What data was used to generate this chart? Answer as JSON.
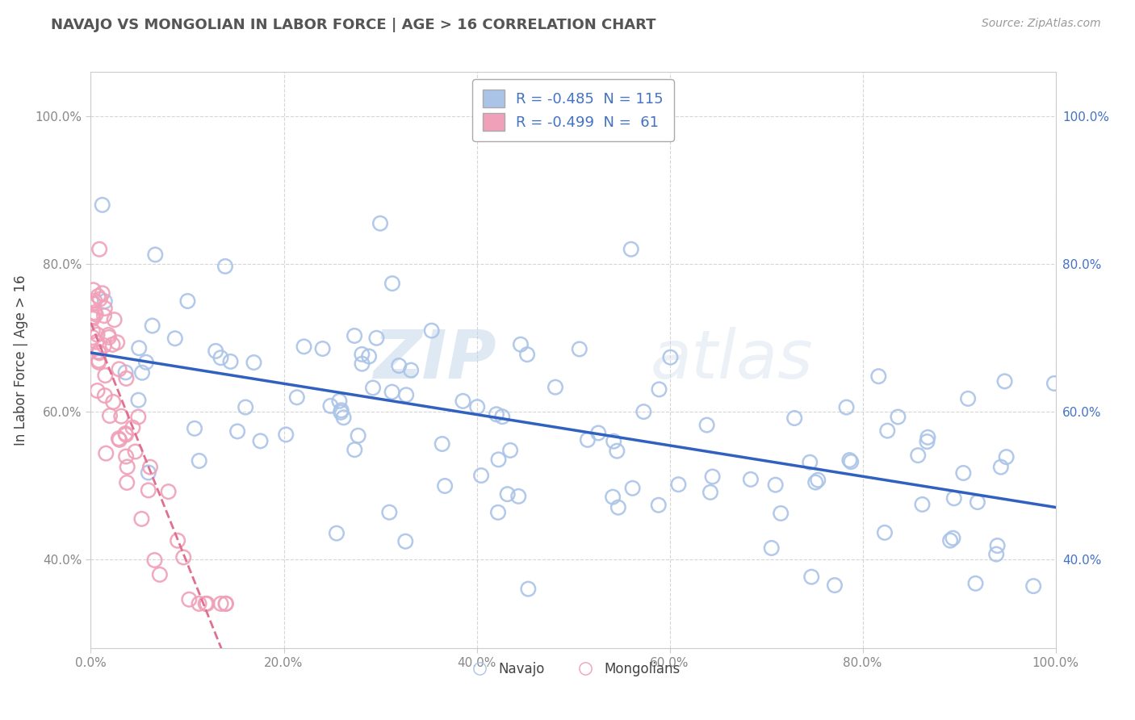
{
  "title": "NAVAJO VS MONGOLIAN IN LABOR FORCE | AGE > 16 CORRELATION CHART",
  "source_text": "Source: ZipAtlas.com",
  "ylabel_text": "In Labor Force | Age > 16",
  "xlim": [
    0.0,
    1.0
  ],
  "ylim": [
    0.28,
    1.06
  ],
  "xticks": [
    0.0,
    0.2,
    0.4,
    0.6,
    0.8,
    1.0
  ],
  "yticks": [
    0.4,
    0.6,
    0.8,
    1.0
  ],
  "xtick_labels": [
    "0.0%",
    "20.0%",
    "40.0%",
    "60.0%",
    "80.0%",
    "100.0%"
  ],
  "ytick_labels": [
    "40.0%",
    "60.0%",
    "80.0%",
    "100.0%"
  ],
  "navajo_R": -0.485,
  "navajo_N": 115,
  "mongolian_R": -0.499,
  "mongolian_N": 61,
  "navajo_color": "#aac4e8",
  "mongolian_color": "#f0a0b8",
  "navajo_line_color": "#3060c0",
  "mongolian_line_color": "#e07090",
  "legend_text_color": "#4472c4",
  "title_color": "#555555",
  "background_color": "#ffffff",
  "grid_color": "#cccccc",
  "watermark": "ZIPatlas",
  "navajo_seed": 77,
  "mongolian_seed": 42
}
